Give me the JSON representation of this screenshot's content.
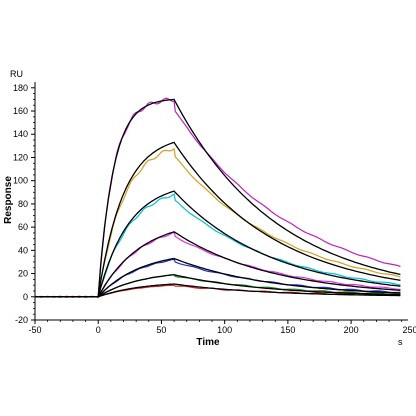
{
  "chart_data": {
    "type": "line",
    "title": "",
    "xlabel": "Time",
    "ylabel": "Response",
    "x_unit": "s",
    "y_unit": "RU",
    "xlim": [
      -50,
      245
    ],
    "ylim": [
      -20,
      185
    ],
    "x_ticks": [
      -50,
      0,
      50,
      100,
      150,
      200,
      250
    ],
    "y_ticks": [
      -20,
      0,
      20,
      40,
      60,
      80,
      100,
      120,
      140,
      160,
      180
    ],
    "x_tick_labels": [
      "-50",
      "0",
      "50",
      "100",
      "150",
      "200",
      "250"
    ],
    "y_tick_labels": [
      "-20",
      "0",
      "20",
      "40",
      "60",
      "80",
      "100",
      "120",
      "140",
      "160",
      "180"
    ],
    "grid": false,
    "legend": "none",
    "injection_start": 0,
    "injection_end": 60,
    "series": [
      {
        "color": "#c020c0",
        "peak": 170,
        "end": 27
      },
      {
        "color": "#d4a020",
        "peak": 128,
        "end": 18
      },
      {
        "color": "#00bfd8",
        "peak": 88,
        "end": 11
      },
      {
        "color": "#e030e0",
        "peak": 55,
        "end": 7
      },
      {
        "color": "#1f2fd0",
        "peak": 32,
        "end": 4
      },
      {
        "color": "#1a8a1a",
        "peak": 19,
        "end": 2.5
      },
      {
        "color": "#d02020",
        "peak": 10,
        "end": 1.5
      }
    ],
    "fits": [
      {
        "color": "#000000",
        "peak": 170,
        "end": 19
      },
      {
        "color": "#000000",
        "peak": 133,
        "end": 14
      },
      {
        "color": "#000000",
        "peak": 91,
        "end": 9
      },
      {
        "color": "#000000",
        "peak": 56,
        "end": 5.5
      },
      {
        "color": "#000000",
        "peak": 33,
        "end": 3.2
      },
      {
        "color": "#000000",
        "peak": 19,
        "end": 1.8
      },
      {
        "color": "#000000",
        "peak": 11,
        "end": 1
      }
    ]
  }
}
